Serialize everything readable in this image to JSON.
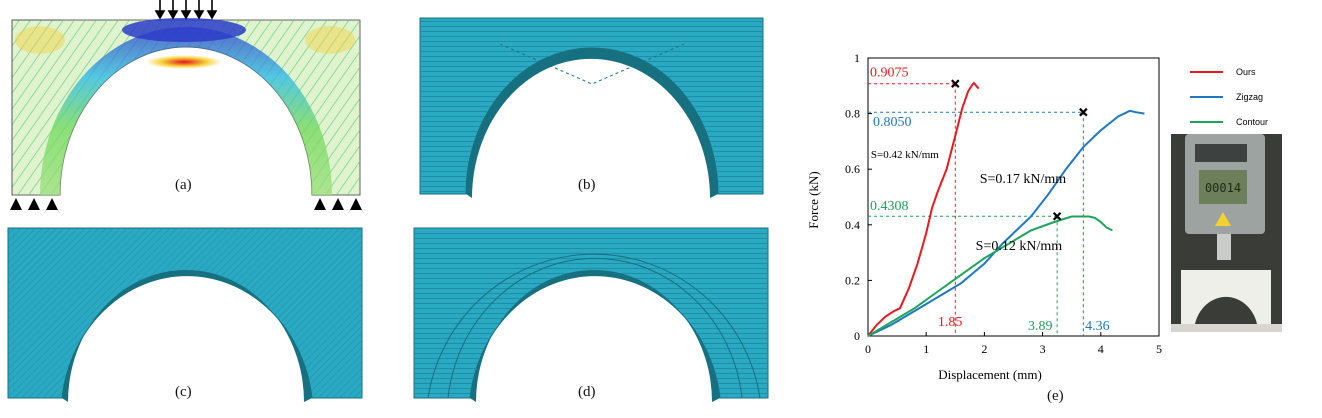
{
  "captions": {
    "a": "(a)",
    "b": "(b)",
    "c": "(c)",
    "d": "(d)",
    "e": "(e)"
  },
  "colors": {
    "ours": "#e8191f",
    "zigzag": "#1f77c4",
    "contour": "#1ea35a",
    "path_fill": "#2aa9c2",
    "path_dark": "#17707f"
  },
  "chart_data": {
    "type": "line",
    "xlabel": "Displacement (mm)",
    "ylabel": "Force (kN)",
    "xlim": [
      0,
      5
    ],
    "ylim": [
      0,
      1
    ],
    "xticks": [
      "0",
      "1",
      "2",
      "3",
      "4",
      "5"
    ],
    "yticks": [
      "0",
      "0.2",
      "0.4",
      "0.6",
      "0.8",
      "1"
    ],
    "legend_position": "right",
    "series": [
      {
        "name": "Ours",
        "x": [
          0,
          0.15,
          0.3,
          0.45,
          0.55,
          0.7,
          0.85,
          1.0,
          1.1,
          1.2,
          1.35,
          1.5,
          1.62,
          1.72,
          1.78,
          1.82,
          1.86,
          1.9
        ],
        "y": [
          0,
          0.04,
          0.07,
          0.09,
          0.1,
          0.17,
          0.26,
          0.37,
          0.46,
          0.52,
          0.6,
          0.72,
          0.82,
          0.88,
          0.9,
          0.91,
          0.9,
          0.89
        ]
      },
      {
        "name": "Zigzag",
        "x": [
          0,
          0.4,
          0.8,
          1.2,
          1.6,
          2.0,
          2.3,
          2.5,
          2.8,
          3.1,
          3.4,
          3.7,
          4.0,
          4.3,
          4.5,
          4.6,
          4.75
        ],
        "y": [
          0,
          0.04,
          0.09,
          0.14,
          0.19,
          0.26,
          0.33,
          0.37,
          0.43,
          0.51,
          0.6,
          0.68,
          0.74,
          0.79,
          0.81,
          0.805,
          0.8
        ]
      },
      {
        "name": "Contour",
        "x": [
          0,
          0.4,
          0.8,
          1.2,
          1.6,
          2.0,
          2.4,
          2.8,
          3.2,
          3.5,
          3.8,
          3.9,
          4.0,
          4.1,
          4.2
        ],
        "y": [
          0,
          0.05,
          0.1,
          0.16,
          0.22,
          0.28,
          0.33,
          0.38,
          0.41,
          0.43,
          0.43,
          0.425,
          0.41,
          0.39,
          0.38
        ]
      }
    ],
    "failure_markers": [
      {
        "series": "Ours",
        "x": 1.5,
        "y": 0.9075
      },
      {
        "series": "Zigzag",
        "x": 3.7,
        "y": 0.805
      },
      {
        "series": "Contour",
        "x": 3.25,
        "y": 0.4308
      }
    ],
    "annotations": {
      "peak_values": [
        "0.9075",
        "0.8050",
        "0.4308"
      ],
      "displacement_values": [
        "1.85",
        "3.89",
        "4.36"
      ],
      "stiffness": [
        "S=0.42 kN/mm",
        "S=0.17 kN/mm",
        "S=0.12 kN/mm"
      ]
    }
  },
  "photo": {
    "display_value": "00014"
  }
}
